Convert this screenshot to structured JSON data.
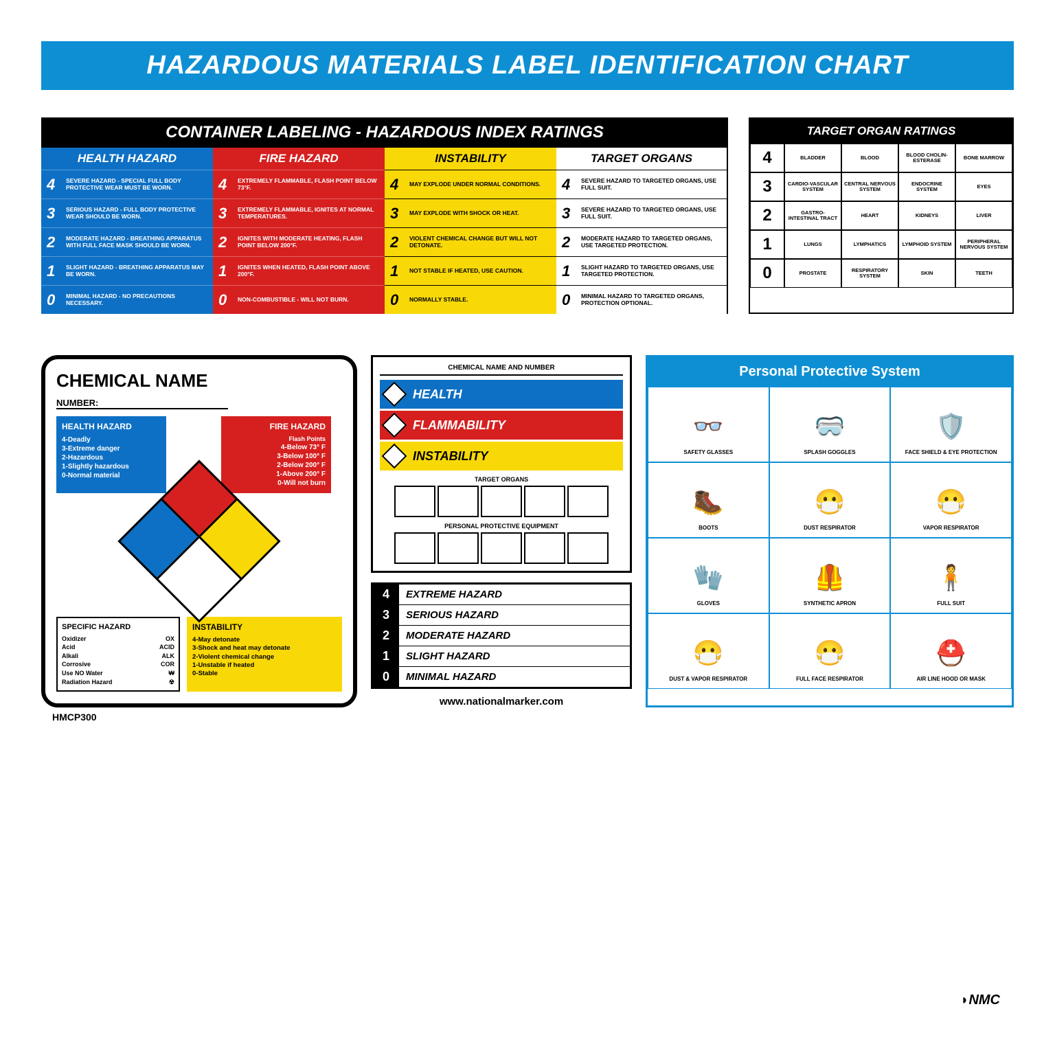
{
  "title": "HAZARDOUS MATERIALS LABEL IDENTIFICATION CHART",
  "colors": {
    "blue": "#0e8fd4",
    "health": "#0e70c4",
    "fire": "#d62020",
    "instability": "#f9d808",
    "black": "#000000",
    "white": "#ffffff"
  },
  "ratings": {
    "header": "CONTAINER LABELING - HAZARDOUS INDEX RATINGS",
    "columns": [
      {
        "label": "HEALTH HAZARD",
        "class": "health"
      },
      {
        "label": "FIRE HAZARD",
        "class": "fire"
      },
      {
        "label": "INSTABILITY",
        "class": "instability"
      },
      {
        "label": "TARGET ORGANS",
        "class": "target"
      }
    ],
    "rows": [
      {
        "num": "4",
        "health": "SEVERE HAZARD - SPECIAL FULL BODY PROTECTIVE WEAR MUST BE WORN.",
        "fire": "EXTREMELY FLAMMABLE, FLASH POINT BELOW 73°F.",
        "instability": "MAY EXPLODE UNDER NORMAL CONDITIONS.",
        "target": "SEVERE HAZARD TO TARGETED ORGANS, USE FULL SUIT."
      },
      {
        "num": "3",
        "health": "SERIOUS HAZARD - FULL BODY PROTECTIVE WEAR SHOULD BE WORN.",
        "fire": "EXTREMELY FLAMMABLE, IGNITES AT NORMAL TEMPERATURES.",
        "instability": "MAY EXPLODE WITH SHOCK OR HEAT.",
        "target": "SEVERE HAZARD TO TARGETED ORGANS, USE FULL SUIT."
      },
      {
        "num": "2",
        "health": "MODERATE HAZARD - BREATHING APPARATUS WITH FULL FACE MASK SHOULD BE WORN.",
        "fire": "IGNITES WITH MODERATE HEATING, FLASH POINT BELOW 200°F.",
        "instability": "VIOLENT CHEMICAL CHANGE BUT WILL NOT DETONATE.",
        "target": "MODERATE HAZARD TO TARGETED ORGANS, USE TARGETED PROTECTION."
      },
      {
        "num": "1",
        "health": "SLIGHT HAZARD - BREATHING APPARATUS MAY BE WORN.",
        "fire": "IGNITES WHEN HEATED, FLASH POINT ABOVE 200°F.",
        "instability": "NOT STABLE IF HEATED, USE CAUTION.",
        "target": "SLIGHT HAZARD TO TARGETED ORGANS, USE TARGETED PROTECTION."
      },
      {
        "num": "0",
        "health": "MINIMAL HAZARD - NO PRECAUTIONS NECESSARY.",
        "fire": "NON-COMBUSTIBLE - WILL NOT BURN.",
        "instability": "NORMALLY STABLE.",
        "target": "MINIMAL HAZARD TO TARGETED ORGANS, PROTECTION OPTIONAL."
      }
    ]
  },
  "organs": {
    "header": "TARGET ORGAN RATINGS",
    "rows": [
      {
        "num": "4",
        "cells": [
          "BLADDER",
          "BLOOD",
          "BLOOD CHOLIN-ESTERASE",
          "BONE MARROW"
        ]
      },
      {
        "num": "3",
        "cells": [
          "CARDIO-VASCULAR SYSTEM",
          "CENTRAL NERVOUS SYSTEM",
          "ENDOCRINE SYSTEM",
          "EYES"
        ]
      },
      {
        "num": "2",
        "cells": [
          "GASTRO-INTESTINAL TRACT",
          "HEART",
          "KIDNEYS",
          "LIVER"
        ]
      },
      {
        "num": "1",
        "cells": [
          "LUNGS",
          "LYMPHATICS",
          "LYMPHOID SYSTEM",
          "PERIPHERAL NERVOUS SYSTEM"
        ]
      },
      {
        "num": "0",
        "cells": [
          "PROSTATE",
          "RESPIRATORY SYSTEM",
          "SKIN",
          "TEETH"
        ]
      }
    ]
  },
  "chem": {
    "title": "CHEMICAL NAME",
    "number_label": "NUMBER:",
    "health": {
      "title": "HEALTH HAZARD",
      "lines": [
        "4-Deadly",
        "3-Extreme danger",
        "2-Hazardous",
        "1-Slightly hazardous",
        "0-Normal material"
      ]
    },
    "fire": {
      "title": "FIRE HAZARD",
      "subtitle": "Flash Points",
      "lines": [
        "4-Below 73° F",
        "3-Below 100° F",
        "2-Below 200° F",
        "1-Above 200° F",
        "0-Will not burn"
      ]
    },
    "instability": {
      "title": "INSTABILITY",
      "lines": [
        "4-May detonate",
        "3-Shock and heat may detonate",
        "2-Violent chemical change",
        "1-Unstable if heated",
        "0-Stable"
      ]
    },
    "specific": {
      "title": "SPECIFIC HAZARD",
      "rows": [
        [
          "Oxidizer",
          "OX"
        ],
        [
          "Acid",
          "ACID"
        ],
        [
          "Alkali",
          "ALK"
        ],
        [
          "Corrosive",
          "COR"
        ],
        [
          "Use NO Water",
          "₩"
        ],
        [
          "Radiation Hazard",
          "☢"
        ]
      ]
    },
    "code": "HMCP300"
  },
  "label": {
    "head": "CHEMICAL NAME AND NUMBER",
    "rows": [
      {
        "text": "HEALTH",
        "class": "health"
      },
      {
        "text": "FLAMMABILITY",
        "class": "fire"
      },
      {
        "text": "INSTABILITY",
        "class": "instability"
      }
    ],
    "target_head": "TARGET ORGANS",
    "ppe_head": "PERSONAL PROTECTIVE EQUIPMENT",
    "legend": [
      {
        "num": "4",
        "text": "EXTREME HAZARD"
      },
      {
        "num": "3",
        "text": "SERIOUS HAZARD"
      },
      {
        "num": "2",
        "text": "MODERATE HAZARD"
      },
      {
        "num": "1",
        "text": "SLIGHT HAZARD"
      },
      {
        "num": "0",
        "text": "MINIMAL HAZARD"
      }
    ],
    "site": "www.nationalmarker.com"
  },
  "ppe": {
    "title": "Personal Protective System",
    "items": [
      "SAFETY GLASSES",
      "SPLASH GOGGLES",
      "FACE SHIELD & EYE PROTECTION",
      "BOOTS",
      "DUST RESPIRATOR",
      "VAPOR RESPIRATOR",
      "GLOVES",
      "SYNTHETIC APRON",
      "FULL SUIT",
      "DUST & VAPOR RESPIRATOR",
      "FULL FACE RESPIRATOR",
      "AIR LINE HOOD OR MASK"
    ]
  },
  "brand": "NMC"
}
